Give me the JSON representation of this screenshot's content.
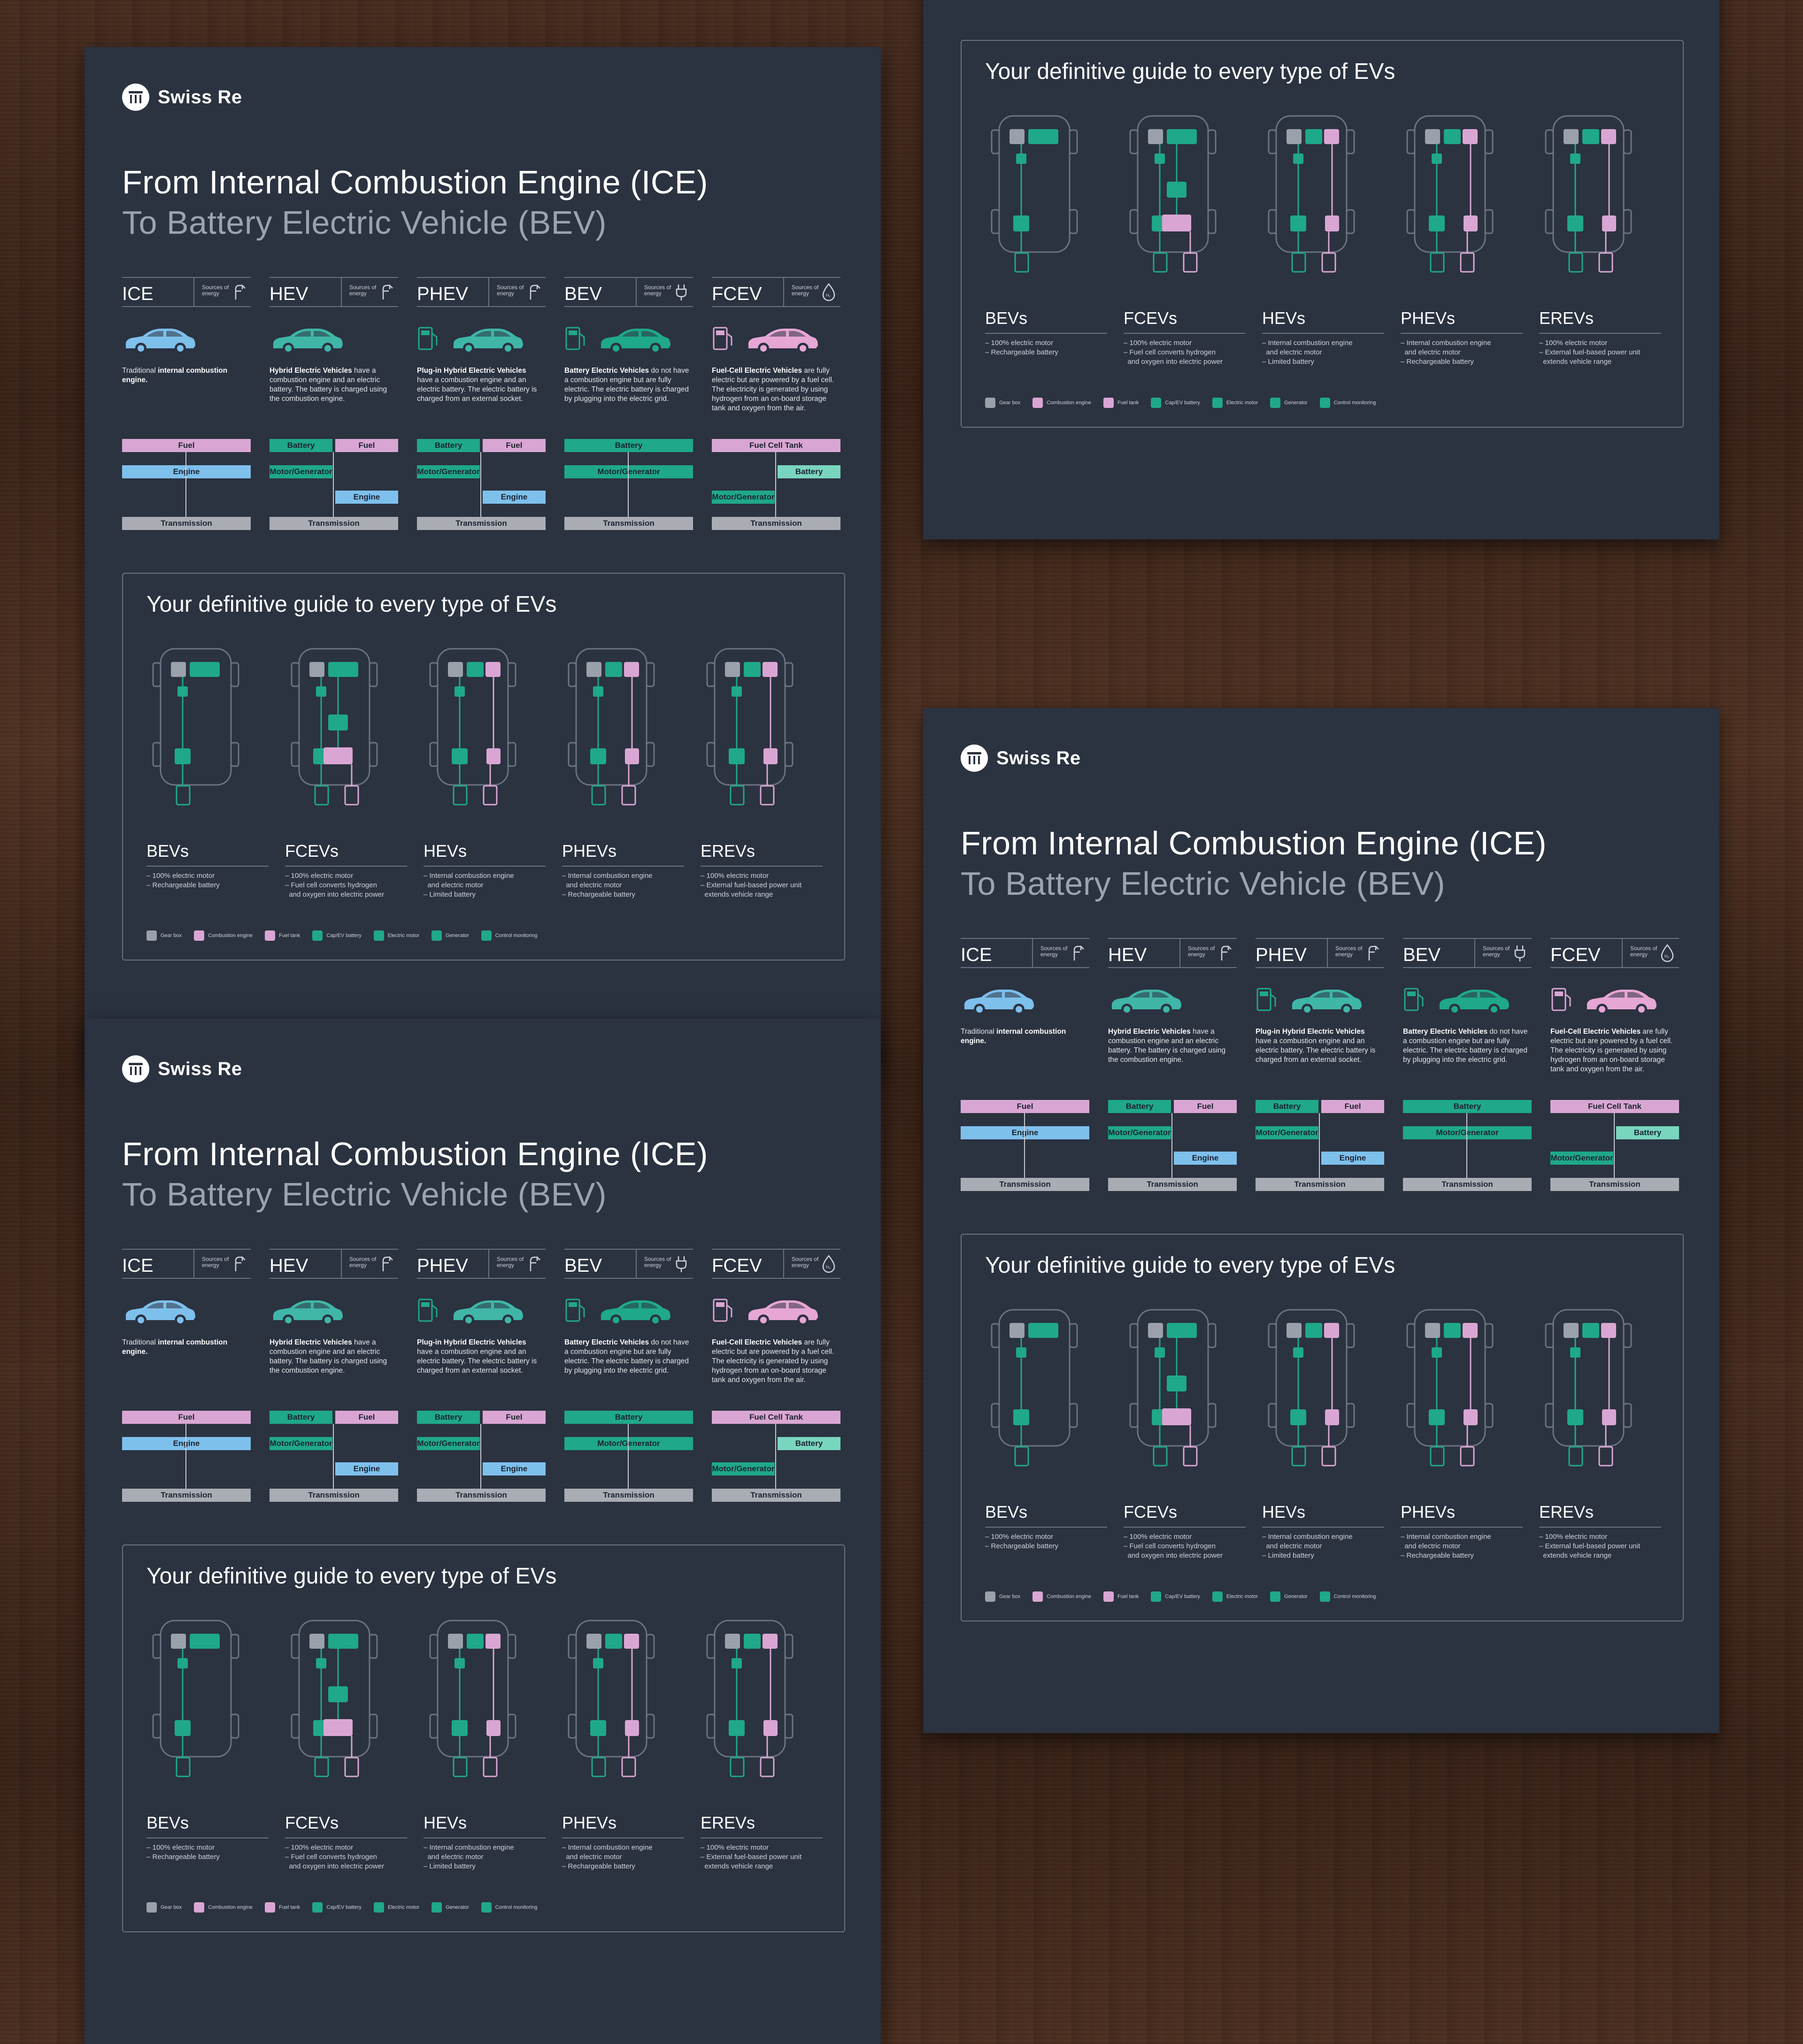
{
  "brand": "Swiss Re",
  "title_line1": "From Internal Combustion Engine (ICE)",
  "title_line2": "To Battery Electric Vehicle (BEV)",
  "sources_label": "Sources of energy",
  "colors": {
    "background": "#2b3240",
    "fuel": "#d9a6d3",
    "engine": "#7ec0ec",
    "battery": "#1fa88a",
    "transmission": "#a9adb3",
    "battery_light": "#79d6be"
  },
  "columns": [
    {
      "name": "ICE",
      "desc_pre": "Traditional ",
      "desc_bold": "internal combustion engine.",
      "desc_post": "",
      "car_color": "#7ec0ec",
      "flow": [
        {
          "label": "Fuel"
        },
        {
          "label": "Engine"
        },
        {
          "label": "Transmission"
        }
      ]
    },
    {
      "name": "HEV",
      "desc_pre": "",
      "desc_bold": "Hybrid Electric Vehicles",
      "desc_post": " have a combustion engine and an electric battery. The battery is charged using the combustion engine.",
      "car_color": "#3fb6a8",
      "flow": [
        {
          "label": "Battery"
        },
        {
          "label": "Fuel"
        },
        {
          "label": "Motor/Generator"
        },
        {
          "label": "Engine"
        },
        {
          "label": "Transmission"
        }
      ]
    },
    {
      "name": "PHEV",
      "desc_pre": "",
      "desc_bold": "Plug-in Hybrid Electric Vehicles",
      "desc_post": " have a combustion engine and an electric battery. The electric battery is charged from an external socket.",
      "car_color": "#3fb6a8",
      "flow": [
        {
          "label": "Battery"
        },
        {
          "label": "Fuel"
        },
        {
          "label": "Motor/Generator"
        },
        {
          "label": "Engine"
        },
        {
          "label": "Transmission"
        }
      ]
    },
    {
      "name": "BEV",
      "desc_pre": "",
      "desc_bold": "Battery Electric Vehicles",
      "desc_post": " do not have a combustion engine but are fully electric. The electric battery is charged by plugging into the electric grid.",
      "car_color": "#1fa88a",
      "flow": [
        {
          "label": "Battery"
        },
        {
          "label": "Motor/Generator"
        },
        {
          "label": "Transmission"
        }
      ]
    },
    {
      "name": "FCEV",
      "desc_pre": "",
      "desc_bold": "Fuel-Cell Electric Vehicles",
      "desc_post": " are fully electric but are powered by a fuel cell. The electricity is generated by using hydrogen from an on-board storage tank and oxygen from the air.",
      "car_color": "#e6a6d6",
      "flow": [
        {
          "label": "Fuel Cell Tank"
        },
        {
          "label": "Battery"
        },
        {
          "label": "Motor/Generator"
        },
        {
          "label": "Transmission"
        }
      ]
    }
  ],
  "guide": {
    "title": "Your definitive guide to every type of EVs",
    "types": [
      {
        "name": "BEVs",
        "notes": [
          "– 100% electric motor",
          "– Rechargeable battery"
        ]
      },
      {
        "name": "FCEVs",
        "notes": [
          "– 100% electric motor",
          "– Fuel cell converts hydrogen",
          "  and oxygen into electric power"
        ]
      },
      {
        "name": "HEVs",
        "notes": [
          "– Internal combustion engine",
          "  and electric motor",
          "– Limited battery"
        ]
      },
      {
        "name": "PHEVs",
        "notes": [
          "– Internal combustion engine",
          "  and electric motor",
          "– Rechargeable battery"
        ]
      },
      {
        "name": "EREVs",
        "notes": [
          "– 100% electric motor",
          "– External fuel-based power unit",
          "  extends vehicle range"
        ]
      }
    ],
    "legend": [
      {
        "label": "Gear box",
        "color": "#9aa1ab"
      },
      {
        "label": "Combustion engine",
        "color": "#d9a6d3"
      },
      {
        "label": "Fuel tank",
        "color": "#d9a6d3"
      },
      {
        "label": "Cap/EV battery",
        "color": "#1fa88a"
      },
      {
        "label": "Electric motor",
        "color": "#1fa88a"
      },
      {
        "label": "Generator",
        "color": "#1fa88a"
      },
      {
        "label": "Control monitoring",
        "color": "#1fa88a"
      }
    ]
  }
}
